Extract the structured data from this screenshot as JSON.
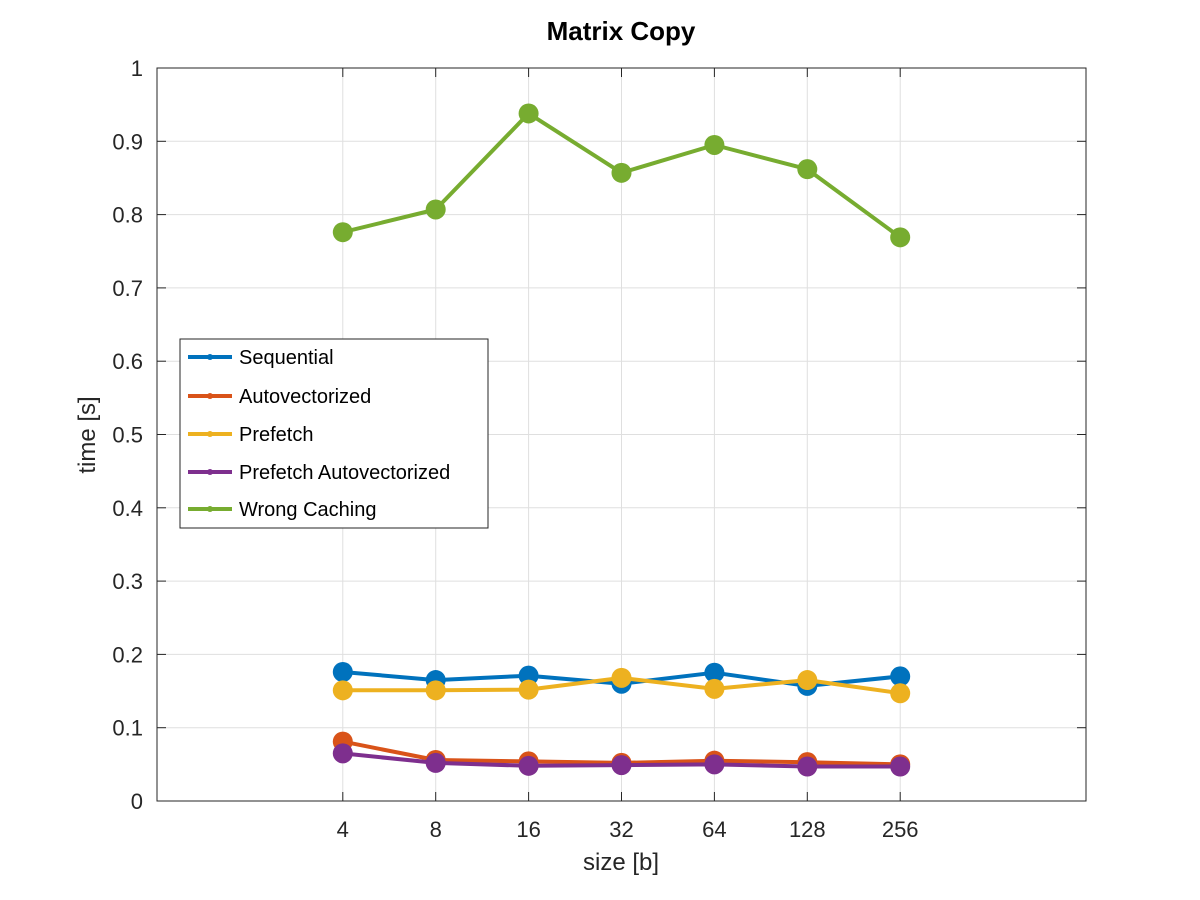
{
  "chart_data": {
    "type": "line",
    "title": "Matrix Copy",
    "xlabel": "size [b]",
    "ylabel": "time [s]",
    "x_scale": "log2",
    "categories": [
      "4",
      "8",
      "16",
      "32",
      "64",
      "128",
      "256"
    ],
    "x": [
      4,
      8,
      16,
      32,
      64,
      128,
      256
    ],
    "xlim": [
      1,
      1024
    ],
    "ylim": [
      0,
      1
    ],
    "y_ticks": [
      "0",
      "0.1",
      "0.2",
      "0.3",
      "0.4",
      "0.5",
      "0.6",
      "0.7",
      "0.8",
      "0.9",
      "1"
    ],
    "grid": true,
    "legend_position": "left-middle",
    "series": [
      {
        "name": "Sequential",
        "color": "#0072BD",
        "values": [
          0.176,
          0.165,
          0.171,
          0.16,
          0.175,
          0.157,
          0.17
        ]
      },
      {
        "name": "Autovectorized",
        "color": "#D95319",
        "values": [
          0.081,
          0.056,
          0.054,
          0.052,
          0.055,
          0.053,
          0.05
        ]
      },
      {
        "name": "Prefetch",
        "color": "#EDB120",
        "values": [
          0.151,
          0.151,
          0.152,
          0.168,
          0.153,
          0.165,
          0.147
        ]
      },
      {
        "name": "Prefetch Autovectorized",
        "color": "#7E2F8E",
        "values": [
          0.065,
          0.052,
          0.048,
          0.049,
          0.05,
          0.047,
          0.047
        ]
      },
      {
        "name": "Wrong Caching",
        "color": "#77AC30",
        "values": [
          0.776,
          0.807,
          0.938,
          0.857,
          0.895,
          0.862,
          0.769
        ]
      }
    ]
  }
}
